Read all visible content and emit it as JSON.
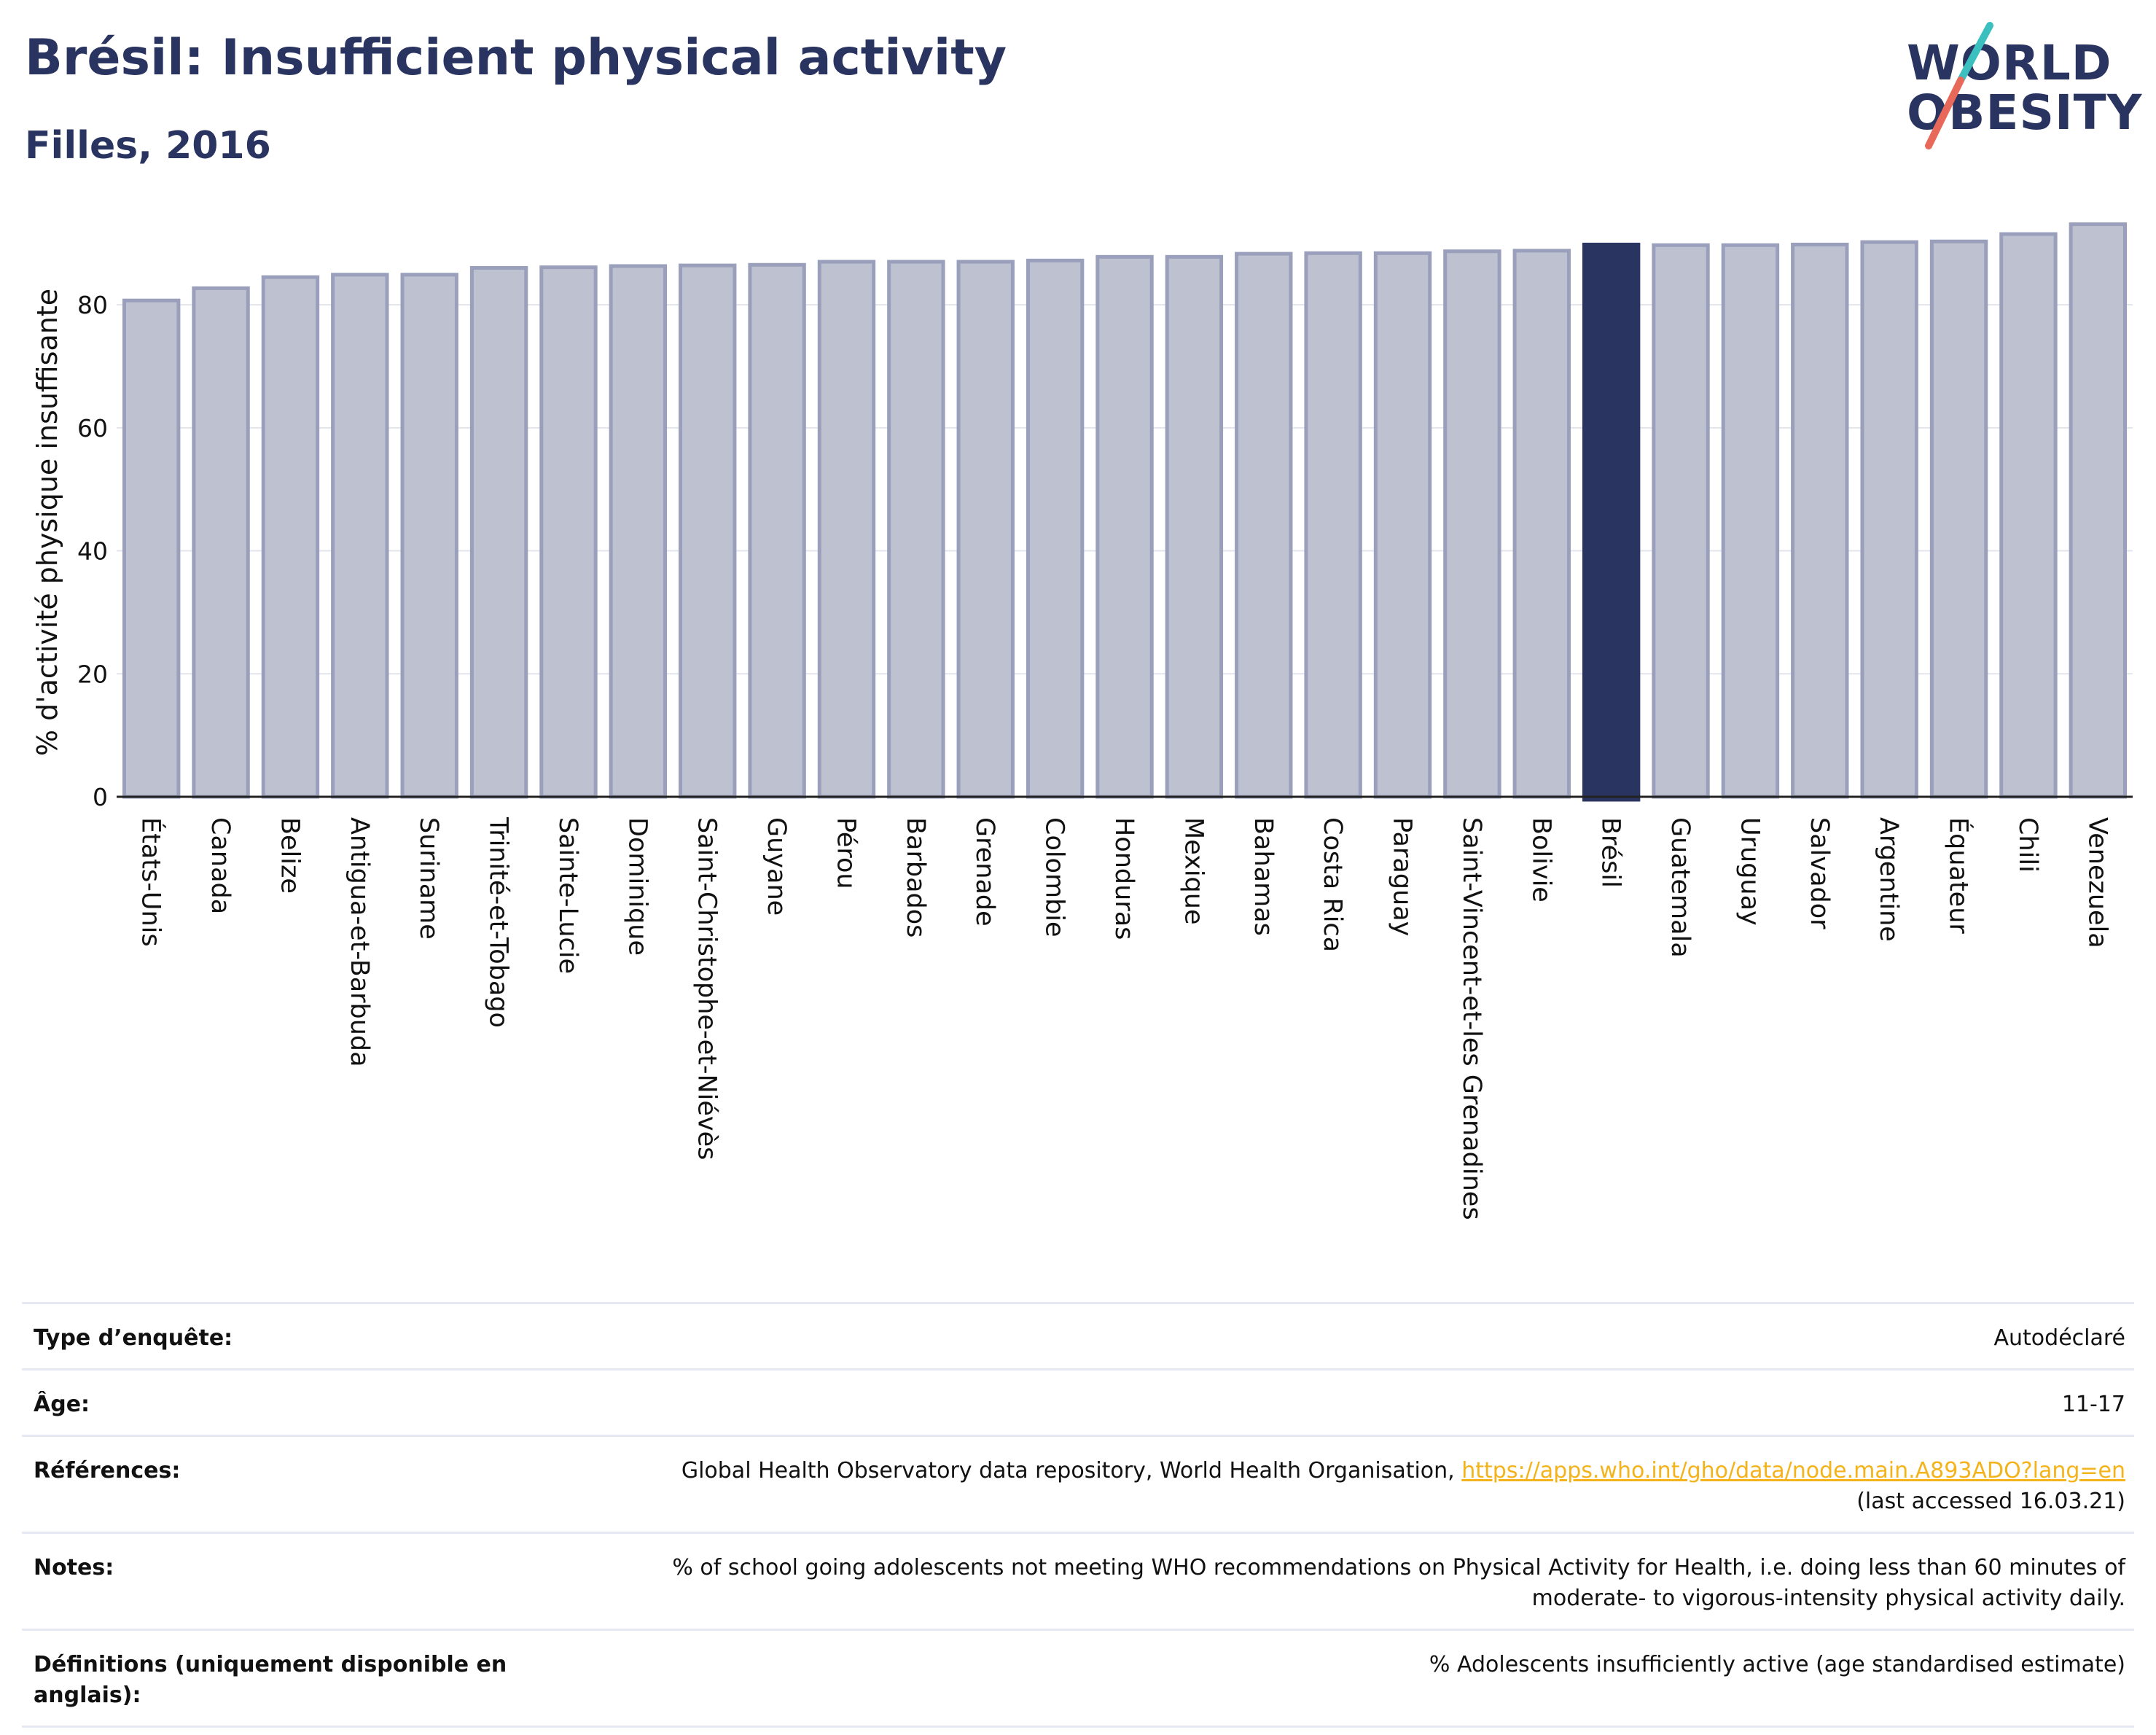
{
  "header": {
    "title": "Brésil: Insufficient physical activity",
    "subtitle": "Filles, 2016"
  },
  "logo": {
    "line1": "WORLD",
    "line2": "OBESITY",
    "accent_colors": [
      "#3bbfbf",
      "#e8685a"
    ]
  },
  "colors": {
    "bar": "#bec1cf",
    "bar_border": "#9aa0bb",
    "highlight": "#2a3460",
    "title": "#2a3460",
    "link": "#f4b31a"
  },
  "chart_data": {
    "type": "bar",
    "ylabel": "% d'activité physique insuffisante",
    "xlabel": "",
    "ylim": [
      0,
      94
    ],
    "yticks": [
      0,
      20,
      40,
      60,
      80
    ],
    "grid": true,
    "highlight": "Brésil",
    "categories": [
      "États-Unis",
      "Canada",
      "Belize",
      "Antigua-et-Barbuda",
      "Suriname",
      "Trinité-et-Tobago",
      "Sainte-Lucie",
      "Dominique",
      "Saint-Christophe-et-Niévès",
      "Guyane",
      "Pérou",
      "Barbados",
      "Grenade",
      "Colombie",
      "Honduras",
      "Mexique",
      "Bahamas",
      "Costa Rica",
      "Paraguay",
      "Saint-Vincent-et-les Grenadines",
      "Bolivie",
      "Brésil",
      "Guatemala",
      "Uruguay",
      "Salvador",
      "Argentine",
      "Équateur",
      "Chili",
      "Venezuela"
    ],
    "values": [
      80.7,
      82.7,
      84.5,
      84.9,
      84.9,
      86.0,
      86.1,
      86.3,
      86.4,
      86.5,
      87.0,
      87.0,
      87.0,
      87.2,
      87.8,
      87.8,
      88.3,
      88.4,
      88.4,
      88.7,
      88.8,
      89.8,
      89.7,
      89.7,
      89.8,
      90.2,
      90.3,
      91.5,
      93.1
    ]
  },
  "info": {
    "survey_label": "Type d’enquête:",
    "survey_value": "Autodéclaré",
    "age_label": "Âge:",
    "age_value": "11-17",
    "refs_label": "Références:",
    "refs_text": "Global Health Observatory data repository, World Health Organisation,",
    "refs_link": "https://apps.who.int/gho/data/node.main.A893ADO?lang=en",
    "refs_accessed": "(last accessed 16.03.21)",
    "notes_label": "Notes:",
    "notes_line1": "% of school going adolescents not meeting WHO recommendations on Physical Activity for Health, i.e. doing less than 60 minutes of",
    "notes_line2": "moderate- to vigorous-intensity physical activity daily.",
    "defs_label": "Définitions (uniquement disponible en anglais):",
    "defs_value": "% Adolescents insufficiently active (age standardised estimate)"
  }
}
